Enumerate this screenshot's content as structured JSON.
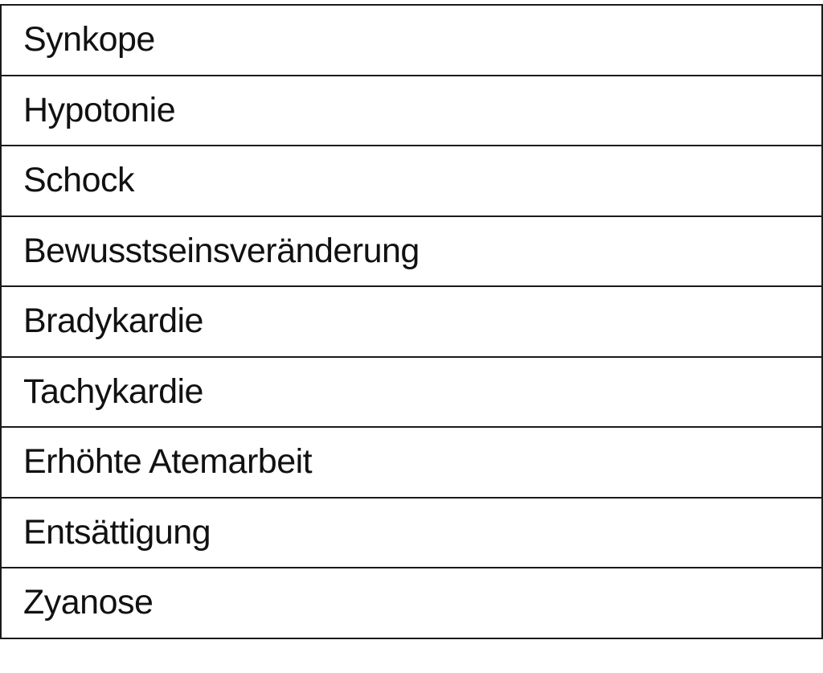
{
  "table": {
    "rows": [
      "Synkope",
      "Hypotonie",
      "Schock",
      "Bewusstseinsveränderung",
      "Bradykardie",
      "Tachykardie",
      "Erhöhte Atemarbeit",
      "Entsättigung",
      "Zyanose"
    ]
  }
}
